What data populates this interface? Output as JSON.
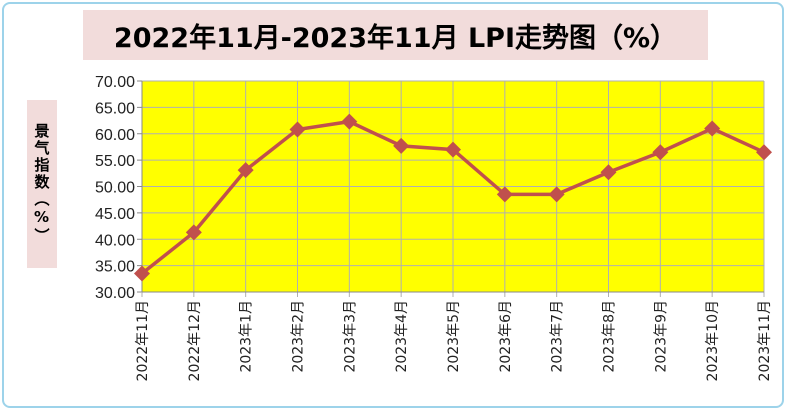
{
  "chart_data": {
    "type": "line",
    "title": "2022年11月-2023年11月 LPI走势图（%）",
    "ylabel": "景气指数（%）",
    "xlabel": "",
    "categories": [
      "2022年11月",
      "2022年12月",
      "2023年1月",
      "2023年2月",
      "2023年3月",
      "2023年4月",
      "2023年5月",
      "2023年6月",
      "2023年7月",
      "2023年8月",
      "2023年9月",
      "2023年10月",
      "2023年11月"
    ],
    "values": [
      33.5,
      41.3,
      53.1,
      60.8,
      62.3,
      57.7,
      57.0,
      48.5,
      48.5,
      52.7,
      56.5,
      61.0,
      56.5
    ],
    "ylim": [
      30,
      70
    ],
    "yticks": [
      "30.00",
      "35.00",
      "40.00",
      "45.00",
      "50.00",
      "55.00",
      "60.00",
      "65.00",
      "70.00"
    ],
    "grid": true,
    "legend": "none",
    "colors": {
      "plot_bg": "#ffff00",
      "line": "#c0504d",
      "grid": "#b0b0b0",
      "title_bg": "#f2dcdb"
    }
  }
}
